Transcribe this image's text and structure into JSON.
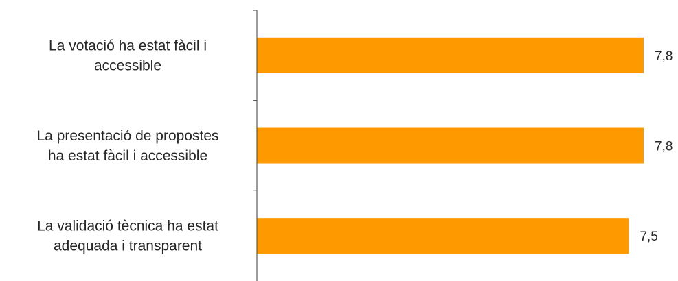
{
  "chart_data": {
    "type": "bar",
    "orientation": "horizontal",
    "categories": [
      [
        "La votació ha estat fàcil i",
        "accessible"
      ],
      [
        "La presentació de propostes",
        "ha estat fàcil i accessible"
      ],
      [
        "La validació tècnica ha estat",
        "adequada i transparent"
      ]
    ],
    "values": [
      7.8,
      7.8,
      7.5
    ],
    "value_labels": [
      "7,8",
      "7,8",
      "7,5"
    ],
    "xlim": [
      0,
      7.8
    ],
    "bar_color": "#FF9900",
    "axis_color": "#595959",
    "grid": false,
    "legend": "none"
  }
}
